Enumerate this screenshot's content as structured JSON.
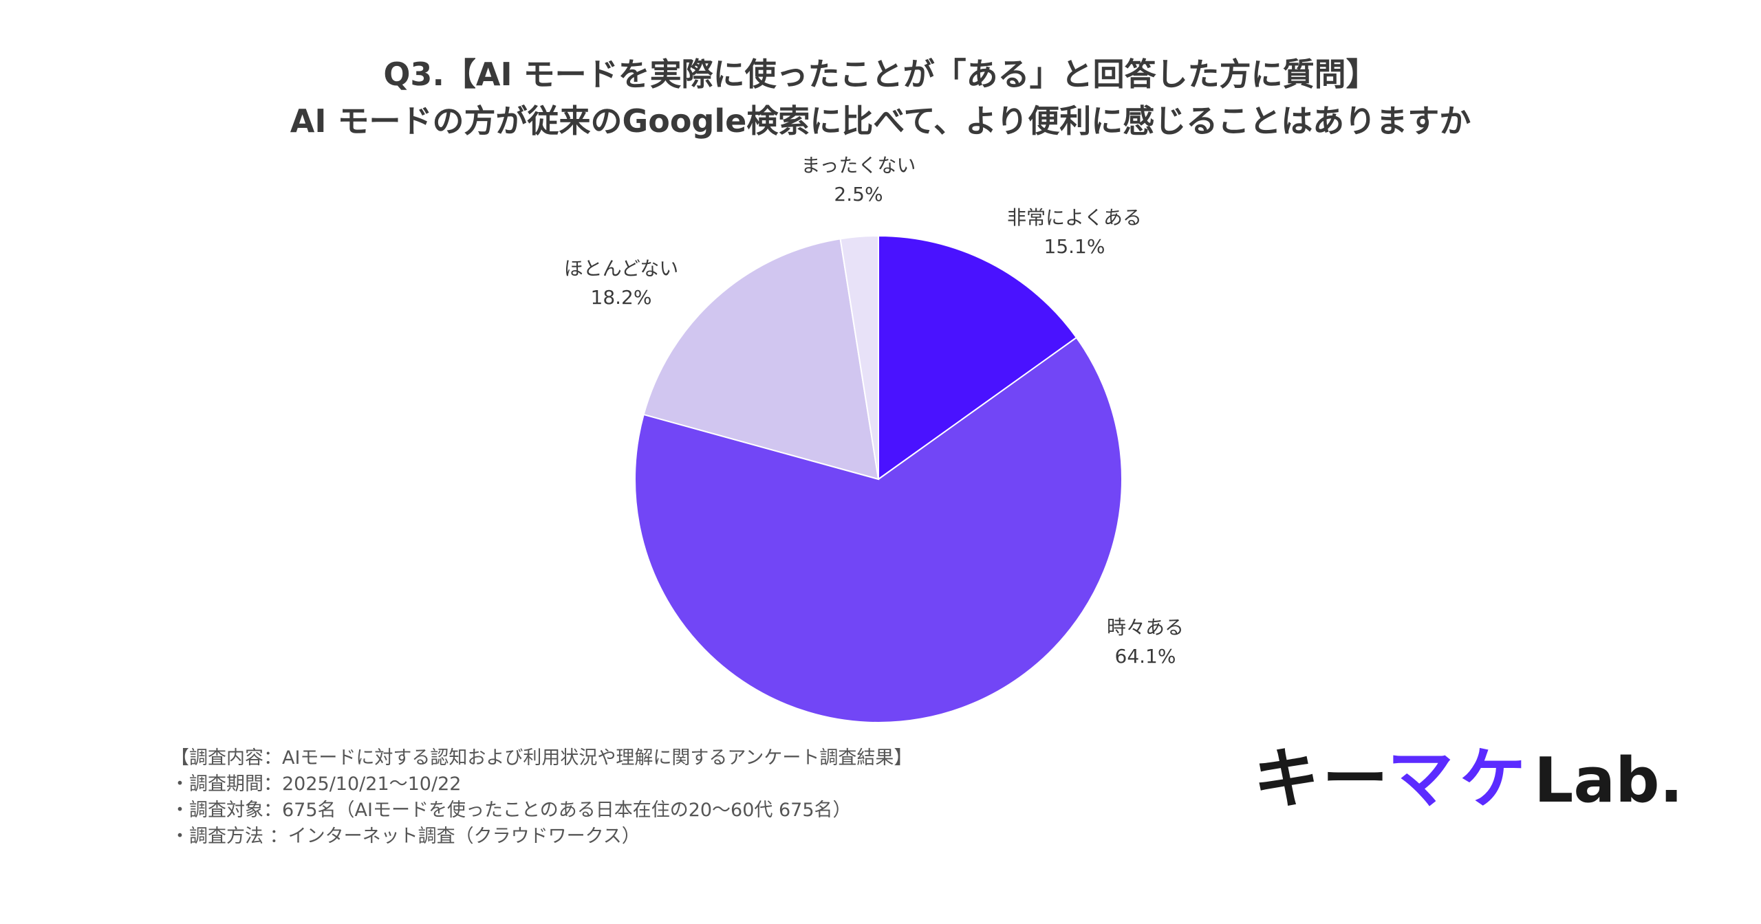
{
  "title_line1": "Q3.【AI モードを実際に使ったことが「ある」と回答した方に質問】",
  "title_line2": "AI モードの方が従来のGoogle検索に比べて、より便利に感じることはありますか",
  "chart_data": {
    "type": "pie",
    "categories": [
      "非常によくある",
      "時々ある",
      "ほとんどない",
      "まったくない"
    ],
    "values": [
      15.1,
      64.1,
      18.2,
      2.5
    ],
    "value_labels": [
      "15.1%",
      "64.1%",
      "18.2%",
      "2.5%"
    ],
    "colors": [
      "#4a12ff",
      "#7246f6",
      "#d1c6f0",
      "#e8e2f8"
    ],
    "start": "12 o'clock",
    "direction": "clockwise"
  },
  "footnotes": [
    "【調査内容：AIモードに対する認知および利用状況や理解に関するアンケート調査結果】",
    "・調査期間：2025/10/21〜10/22",
    "・調査対象：675名（AIモードを使ったことのある日本在住の20〜60代 675名）",
    "・調査方法 ：インターネット調査（クラウドワークス）"
  ],
  "logo": {
    "text_main": "キーマケ",
    "text_lab": "Lab.",
    "main_color": "#1a1a1a",
    "accent_color": "#5b2bff"
  }
}
